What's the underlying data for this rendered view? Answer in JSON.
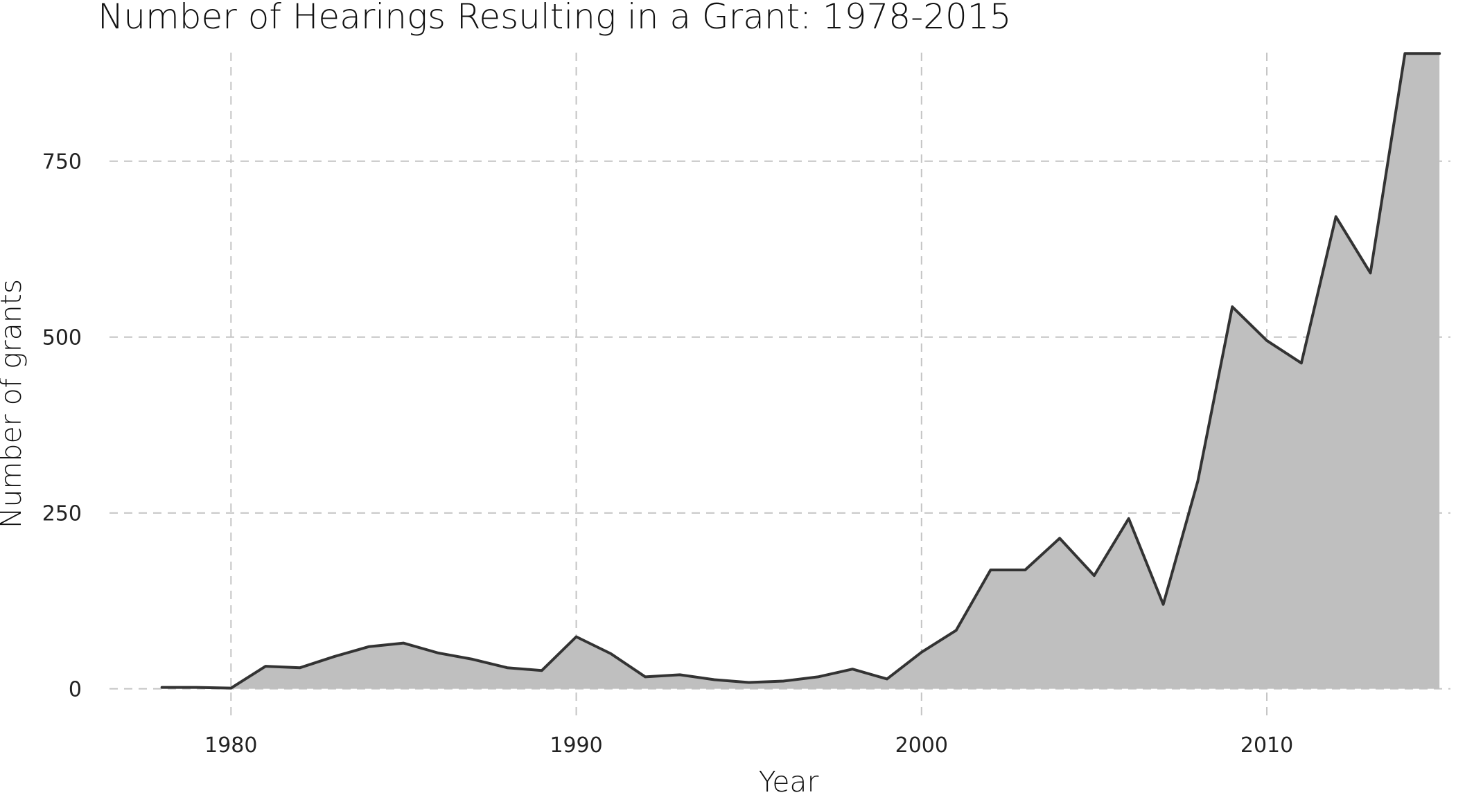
{
  "chart_data": {
    "type": "area",
    "title": "Number of Hearings Resulting in a Grant: 1978-2015",
    "xlabel": "Year",
    "ylabel": "Number of grants",
    "x_tick_labels": [
      "1980",
      "1990",
      "2000",
      "2010"
    ],
    "y_tick_labels": [
      "0",
      "250",
      "500",
      "750"
    ],
    "x_ticks": [
      1980,
      1990,
      2000,
      2010
    ],
    "y_ticks": [
      0,
      250,
      500,
      750
    ],
    "xlim": [
      1976,
      2016
    ],
    "ylim": [
      -20,
      920
    ],
    "grid": true,
    "legend": "none",
    "fill_color": "#bfbfbf",
    "line_color": "#333333",
    "x": [
      1978,
      1979,
      1980,
      1981,
      1982,
      1983,
      1984,
      1985,
      1986,
      1987,
      1988,
      1989,
      1990,
      1991,
      1992,
      1993,
      1994,
      1995,
      1996,
      1997,
      1998,
      1999,
      2000,
      2001,
      2002,
      2003,
      2004,
      2005,
      2006,
      2007,
      2008,
      2009,
      2010,
      2011,
      2012,
      2013,
      2014,
      2015
    ],
    "values": [
      2,
      2,
      1,
      32,
      30,
      46,
      60,
      65,
      51,
      42,
      30,
      26,
      74,
      50,
      17,
      20,
      13,
      9,
      11,
      17,
      28,
      14,
      52,
      83,
      169,
      169,
      214,
      161,
      242,
      120,
      295,
      543,
      495,
      463,
      671,
      591,
      903,
      903
    ]
  }
}
